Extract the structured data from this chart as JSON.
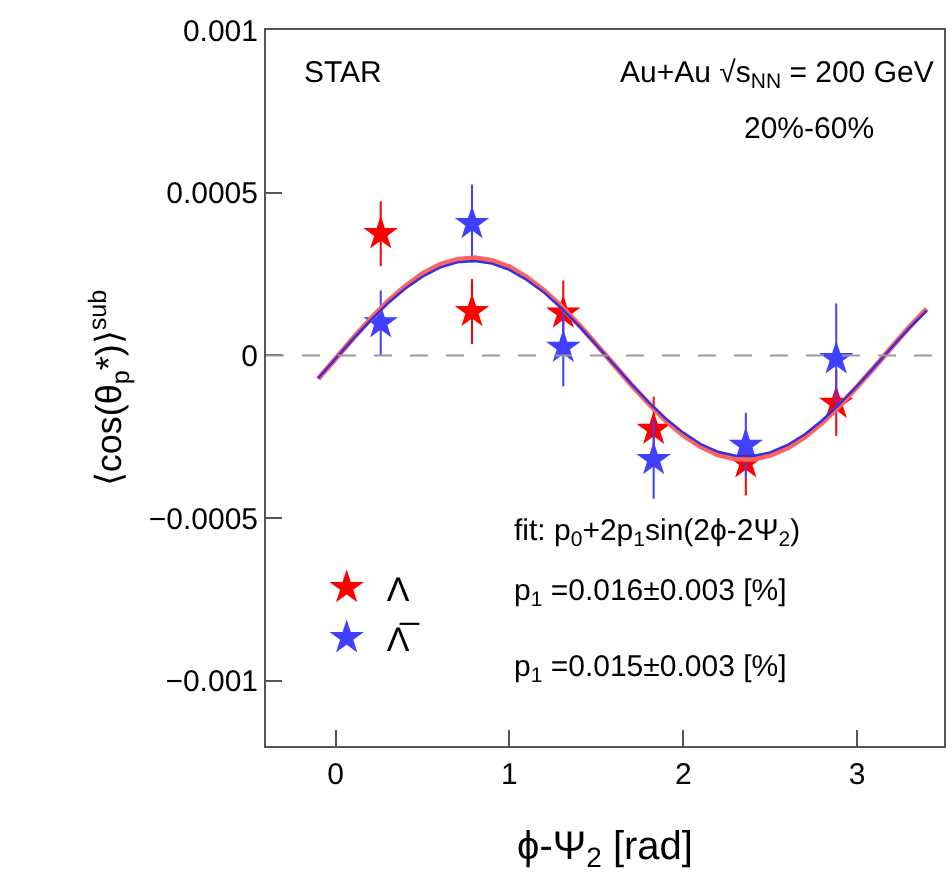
{
  "chart_data": {
    "type": "scatter",
    "xlabel": "ϕ-Ψ$_{2}$ [rad]",
    "ylabel": "⟨cos(θ$_{p}$*)⟩$^{sub}$",
    "annotations": [
      "STAR",
      "Au+Au √s$_{NN}$ = 200 GeV",
      "20%-60%",
      "fit: p$_{0}$+2p$_{1}$sin(2ϕ-2Ψ$_{2}$)",
      "p$_{1}$ =0.016±0.003 [%]",
      "p$_{1}$ =0.015±0.003 [%]"
    ],
    "x": [
      0.26,
      0.785,
      1.31,
      1.83,
      2.36,
      2.88
    ],
    "series": [
      {
        "name": "Λ",
        "color": "#ff0000",
        "marker": "star",
        "values": [
          0.000374,
          0.000135,
          0.00013,
          -0.000227,
          -0.00033,
          -0.000147
        ],
        "errors": [
          0.0001,
          0.0001,
          0.0001,
          0.0001,
          0.0001,
          0.0001
        ]
      },
      {
        "name": "Λ̅",
        "color": "#4040ff",
        "marker": "star",
        "values": [
          0.0001,
          0.000405,
          2.5e-05,
          -0.00032,
          -0.000276,
          -1e-05
        ],
        "errors": [
          0.0001,
          0.00012,
          0.00012,
          0.00012,
          0.0001,
          0.00017
        ]
      },
      {
        "type": "line",
        "color": "#ff6060",
        "line_style": "solid",
        "marker": "none",
        "x": [
          -0.1,
          0,
          0.1,
          0.2,
          0.3,
          0.4,
          0.5,
          0.6,
          0.7,
          0.8,
          0.9,
          1.0,
          1.1,
          1.2,
          1.3,
          1.4,
          1.5,
          1.6,
          1.7,
          1.8,
          1.9,
          2.0,
          2.1,
          2.2,
          2.3,
          2.4,
          2.5,
          2.6,
          2.7,
          2.8,
          2.9,
          3.0,
          3.1,
          3.2,
          3.3,
          3.4
        ],
        "values": [
          -7.2e-05,
          -1e-05,
          5.2e-05,
          0.000111,
          0.000165,
          0.000212,
          0.000251,
          0.000279,
          0.000295,
          0.0003,
          0.000292,
          0.000272,
          0.00024,
          0.000199,
          0.00015,
          9.4e-05,
          3.4e-05,
          -2.8e-05,
          -8.9e-05,
          -0.000147,
          -0.0002,
          -0.000245,
          -0.00028,
          -0.000305,
          -0.000318,
          -0.000319,
          -0.000307,
          -0.000284,
          -0.00025,
          -0.000206,
          -0.000154,
          -9.6e-05,
          -3.6e-05,
          2.6e-05,
          8.7e-05,
          0.000143
        ]
      },
      {
        "type": "line",
        "color": "#3030e0",
        "line_style": "solid",
        "marker": "none",
        "x": [
          -0.1,
          0,
          0.1,
          0.2,
          0.3,
          0.4,
          0.5,
          0.6,
          0.7,
          0.8,
          0.9,
          1.0,
          1.1,
          1.2,
          1.3,
          1.4,
          1.5,
          1.6,
          1.7,
          1.8,
          1.9,
          2.0,
          2.1,
          2.2,
          2.3,
          2.4,
          2.5,
          2.6,
          2.7,
          2.8,
          2.9,
          3.0,
          3.1,
          3.2,
          3.3,
          3.4
        ],
        "values": [
          -7e-05,
          -1e-05,
          5e-05,
          0.000107,
          0.00016,
          0.000205,
          0.000242,
          0.00027,
          0.000286,
          0.00029,
          0.000282,
          0.000263,
          0.000232,
          0.000193,
          0.000145,
          9.1e-05,
          3.2e-05,
          -2.7e-05,
          -8.7e-05,
          -0.000143,
          -0.000194,
          -0.000237,
          -0.000272,
          -0.000296,
          -0.000308,
          -0.000309,
          -0.000298,
          -0.000275,
          -0.000242,
          -0.000199,
          -0.000149,
          -9.4e-05,
          -3.5e-05,
          2.5e-05,
          8.4e-05,
          0.000138
        ]
      }
    ],
    "xlim": [
      -0.4,
      3.5
    ],
    "xticks": [
      0,
      1,
      2,
      3
    ],
    "ylim": [
      -0.0012,
      0.001
    ],
    "yticks": [
      {
        "value": -0.001,
        "label": "−0.001"
      },
      {
        "value": -0.0005,
        "label": "−0.0005"
      },
      0,
      0.0005,
      0.001
    ],
    "ref_lines": [
      {
        "axis": "y",
        "value": 0,
        "color": "#999999",
        "line_style": "dashed"
      }
    ],
    "grid": false,
    "legend": "bottom left"
  }
}
